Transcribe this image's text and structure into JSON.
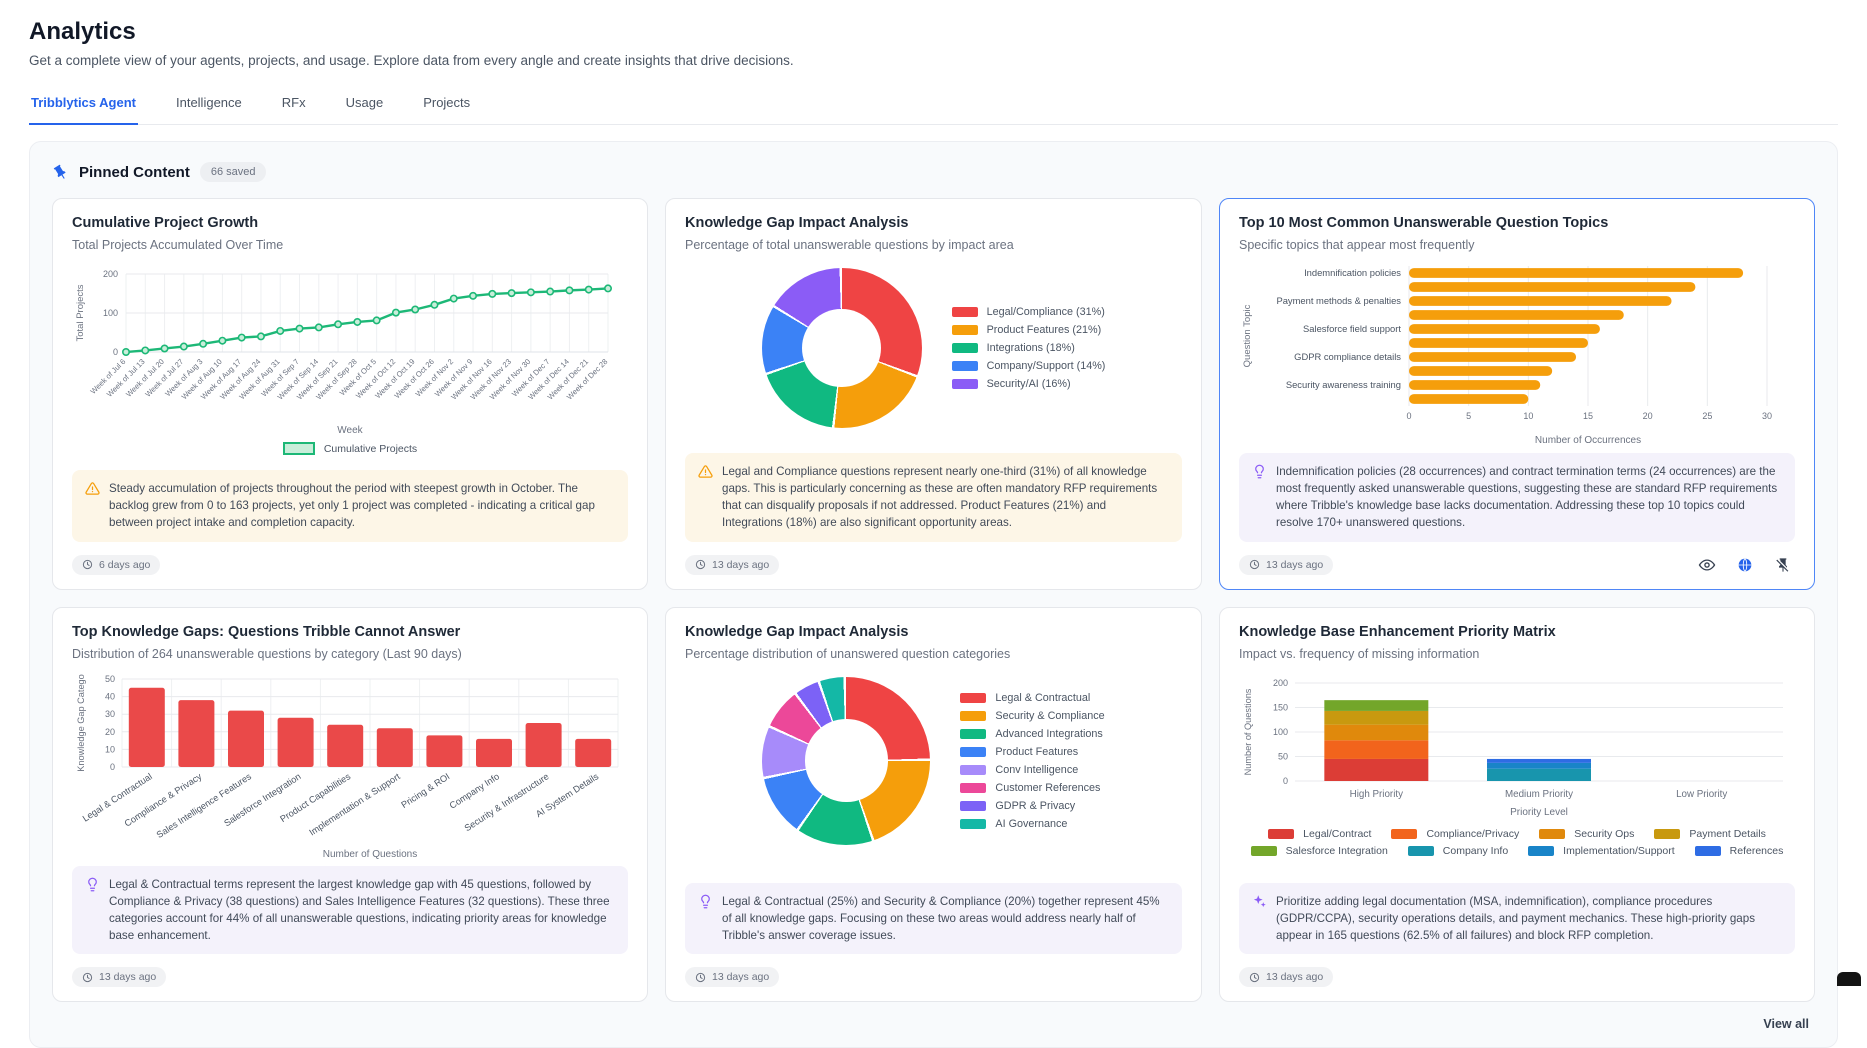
{
  "page": {
    "title": "Analytics",
    "subtitle": "Get a complete view of your agents, projects, and usage. Explore data from every angle and create insights that drive decisions."
  },
  "tabs": [
    {
      "label": "Tribblytics Agent",
      "active": true
    },
    {
      "label": "Intelligence",
      "active": false
    },
    {
      "label": "RFx",
      "active": false
    },
    {
      "label": "Usage",
      "active": false
    },
    {
      "label": "Projects",
      "active": false
    }
  ],
  "pinned": {
    "title": "Pinned Content",
    "badge": "66 saved",
    "view_all": "View all"
  },
  "cards": [
    {
      "title": "Cumulative Project Growth",
      "subtitle": "Total Projects Accumulated Over Time",
      "chart": {
        "type": "line",
        "categories": [
          "Week of Jul 6",
          "Week of Jul 13",
          "Week of Jul 20",
          "Week of Jul 27",
          "Week of Aug 3",
          "Week of Aug 10",
          "Week of Aug 17",
          "Week of Aug 24",
          "Week of Aug 31",
          "Week of Sep 7",
          "Week of Sep 14",
          "Week of Sep 21",
          "Week of Sep 28",
          "Week of Oct 5",
          "Week of Oct 12",
          "Week of Oct 19",
          "Week of Oct 26",
          "Week of Nov 2",
          "Week of Nov 9",
          "Week of Nov 16",
          "Week of Nov 23",
          "Week of Nov 30",
          "Week of Dec 7",
          "Week of Dec 14",
          "Week of Dec 21",
          "Week of Dec 28"
        ],
        "values": [
          0,
          4,
          9,
          14,
          21,
          29,
          37,
          40,
          54,
          60,
          63,
          71,
          77,
          81,
          101,
          109,
          121,
          137,
          144,
          149,
          151,
          153,
          155,
          158,
          160,
          163
        ],
        "yticks": [
          0,
          100,
          200
        ],
        "ylim": [
          0,
          200
        ],
        "xlabel": "Week",
        "ylabel": "Total Projects",
        "legend": "Cumulative Projects",
        "color": "#1db877"
      },
      "insight": {
        "tone": "warn",
        "icon": "warning-icon",
        "text": "Steady accumulation of projects throughout the period with steepest growth in October. The backlog grew from 0 to 163 projects, yet only 1 project was completed - indicating a critical gap between project intake and completion capacity."
      },
      "timestamp": "6 days ago"
    },
    {
      "title": "Knowledge Gap Impact Analysis",
      "subtitle": "Percentage of total unanswerable questions by impact area",
      "chart": {
        "type": "donut",
        "size": 160,
        "slices": [
          {
            "label": "Legal/Compliance (31%)",
            "value": 31,
            "color": "#ef4444"
          },
          {
            "label": "Product Features (21%)",
            "value": 21,
            "color": "#f59e0b"
          },
          {
            "label": "Integrations (18%)",
            "value": 18,
            "color": "#10b981"
          },
          {
            "label": "Company/Support (14%)",
            "value": 14,
            "color": "#3b82f6"
          },
          {
            "label": "Security/AI (16%)",
            "value": 16,
            "color": "#8b5cf6"
          }
        ]
      },
      "insight": {
        "tone": "warn",
        "icon": "warning-icon",
        "text": "Legal and Compliance questions represent nearly one-third (31%) of all knowledge gaps. This is particularly concerning as these are often mandatory RFP requirements that can disqualify proposals if not addressed. Product Features (21%) and Integrations (18%) are also significant opportunity areas."
      },
      "timestamp": "13 days ago"
    },
    {
      "title": "Top 10 Most Common Unanswerable Question Topics",
      "subtitle": "Specific topics that appear most frequently",
      "selected": true,
      "chart": {
        "type": "hbar",
        "values": [
          28,
          24,
          22,
          18,
          16,
          15,
          14,
          12,
          11,
          10
        ],
        "visible_labels": [
          "Indemnification policies",
          "Payment methods & penalties",
          "Salesforce field support",
          "GDPR compliance details",
          "Security awareness training"
        ],
        "xticks": [
          0,
          5,
          10,
          15,
          20,
          25,
          30
        ],
        "xlim": [
          0,
          30
        ],
        "xlabel": "Number of Occurrences",
        "ylabel": "Question Topic",
        "color": "#f59e0b"
      },
      "insight": {
        "tone": "purple",
        "icon": "lightbulb-icon",
        "text": "Indemnification policies (28 occurrences) and contract termination terms (24 occurrences) are the most frequently asked unanswerable questions, suggesting these are standard RFP requirements where Tribble's knowledge base lacks documentation. Addressing these top 10 topics could resolve 170+ unanswered questions."
      },
      "timestamp": "13 days ago",
      "actions": [
        "eye-icon",
        "globe-icon",
        "unpin-icon"
      ]
    },
    {
      "title": "Top Knowledge Gaps: Questions Tribble Cannot Answer",
      "subtitle": "Distribution of 264 unanswerable questions by category (Last 90 days)",
      "chart": {
        "type": "vbar",
        "categories": [
          "Legal & Contractual",
          "Compliance & Privacy",
          "Sales Intelligence Features",
          "Salesforce Integration",
          "Product Capabilities",
          "Implementation & Support",
          "Pricing & ROI",
          "Company Info",
          "Security & Infrastructure",
          "AI System Details"
        ],
        "values": [
          45,
          38,
          32,
          28,
          24,
          22,
          18,
          16,
          25,
          16
        ],
        "yticks": [
          0,
          10,
          20,
          30,
          40,
          50
        ],
        "ylim": [
          0,
          50
        ],
        "xlabel": "Number of Questions",
        "ylabel": "Knowledge Gap Catego",
        "color": "#ea4949"
      },
      "insight": {
        "tone": "purple",
        "icon": "lightbulb-icon",
        "text": "Legal & Contractual terms represent the largest knowledge gap with 45 questions, followed by Compliance & Privacy (38 questions) and Sales Intelligence Features (32 questions). These three categories account for 44% of all unanswerable questions, indicating priority areas for knowledge base enhancement."
      },
      "timestamp": "13 days ago"
    },
    {
      "title": "Knowledge Gap Impact Analysis",
      "subtitle": "Percentage distribution of unanswered question categories",
      "chart": {
        "type": "donut",
        "size": 168,
        "slices": [
          {
            "label": "Legal & Contractual",
            "value": 25,
            "color": "#ef4444"
          },
          {
            "label": "Security & Compliance",
            "value": 20,
            "color": "#f59e0b"
          },
          {
            "label": "Advanced Integrations",
            "value": 15,
            "color": "#10b981"
          },
          {
            "label": "Product Features",
            "value": 12,
            "color": "#3b82f6"
          },
          {
            "label": "Conv Intelligence",
            "value": 10,
            "color": "#a78bfa"
          },
          {
            "label": "Customer References",
            "value": 8,
            "color": "#ec4899"
          },
          {
            "label": "GDPR & Privacy",
            "value": 5,
            "color": "#7c62f6"
          },
          {
            "label": "AI Governance",
            "value": 5,
            "color": "#14b8a6"
          }
        ]
      },
      "insight": {
        "tone": "purple",
        "icon": "lightbulb-icon",
        "text": "Legal & Contractual (25%) and Security & Compliance (20%) together represent 45% of all knowledge gaps. Focusing on these two areas would address nearly half of Tribble's answer coverage issues."
      },
      "timestamp": "13 days ago"
    },
    {
      "title": "Knowledge Base Enhancement Priority Matrix",
      "subtitle": "Impact vs. frequency of missing information",
      "chart": {
        "type": "stack",
        "categories": [
          "High Priority",
          "Medium Priority",
          "Low Priority"
        ],
        "series": [
          {
            "name": "Legal/Contract",
            "color": "#dc3d36",
            "values": [
              45,
              0,
              0
            ]
          },
          {
            "name": "Compliance/Privacy",
            "color": "#f2641c",
            "values": [
              38,
              0,
              0
            ]
          },
          {
            "name": "Security Ops",
            "color": "#e0890c",
            "values": [
              32,
              0,
              0
            ]
          },
          {
            "name": "Payment Details",
            "color": "#c8990f",
            "values": [
              28,
              0,
              0
            ]
          },
          {
            "name": "Salesforce Integration",
            "color": "#73a62a",
            "values": [
              22,
              0,
              0
            ]
          },
          {
            "name": "Company Info",
            "color": "#1895ad",
            "values": [
              0,
              25,
              0
            ]
          },
          {
            "name": "Implementation/Support",
            "color": "#1984c8",
            "values": [
              0,
              12,
              0
            ]
          },
          {
            "name": "References",
            "color": "#2e6ce4",
            "values": [
              0,
              8,
              0
            ]
          }
        ],
        "yticks": [
          0,
          50,
          100,
          150,
          200
        ],
        "ylim": [
          0,
          200
        ],
        "xlabel": "Priority Level",
        "ylabel": "Number of Questions"
      },
      "insight": {
        "tone": "purple",
        "icon": "sparkles-icon",
        "text": "Prioritize adding legal documentation (MSA, indemnification), compliance procedures (GDPR/CCPA), security operations details, and payment mechanics. These high-priority gaps appear in 165 questions (62.5% of all failures) and block RFP completion."
      },
      "timestamp": "13 days ago"
    }
  ]
}
